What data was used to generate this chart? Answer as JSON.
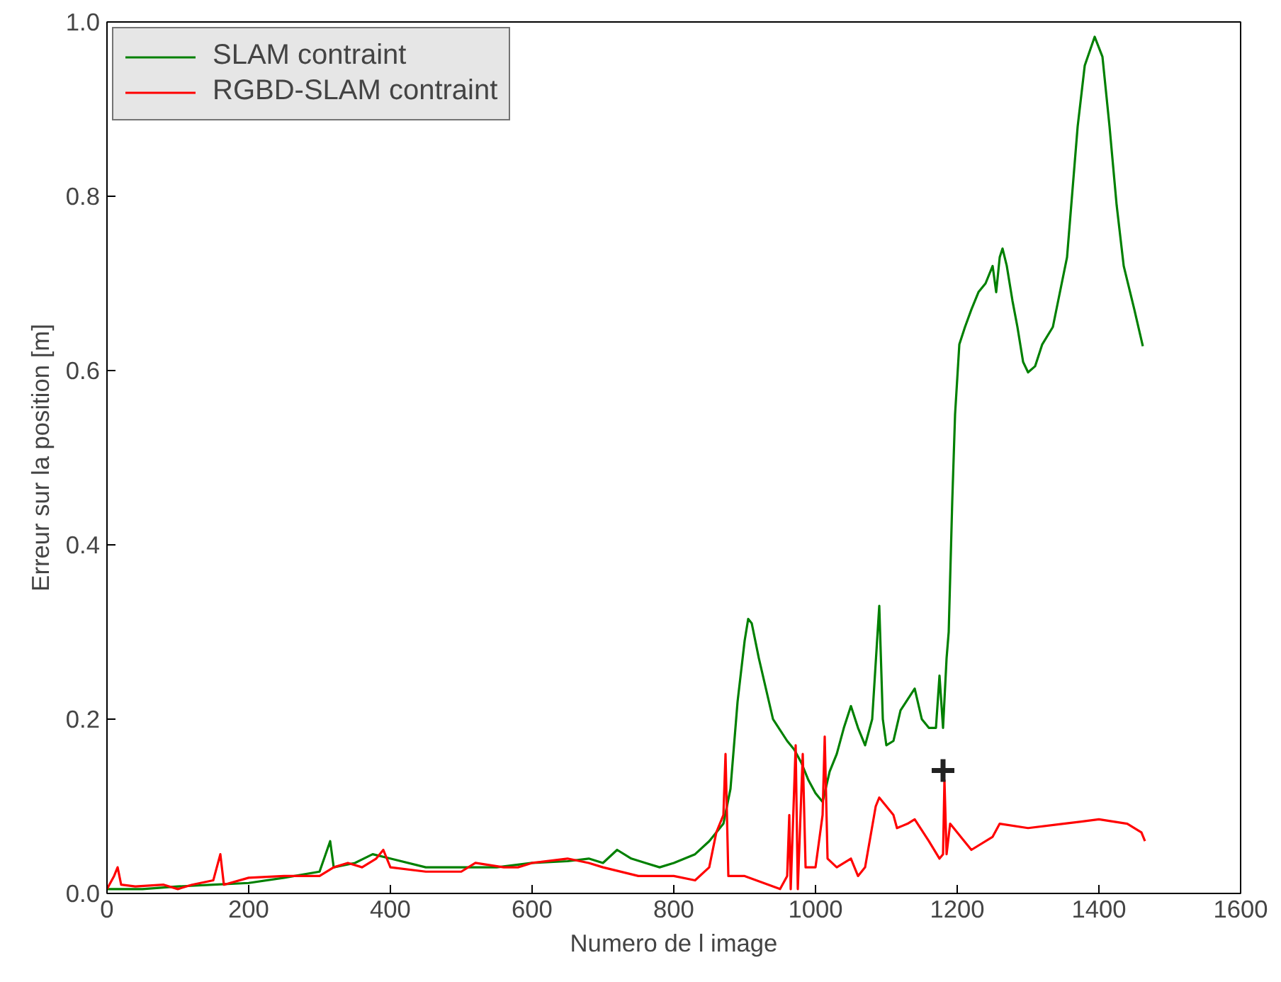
{
  "chart_data": {
    "type": "line",
    "xlabel": "Numero de l image",
    "ylabel": "Erreur sur la position [m]",
    "xlim": [
      0,
      1600
    ],
    "ylim": [
      0,
      1.0
    ],
    "xticks": [
      0,
      200,
      400,
      600,
      800,
      1000,
      1200,
      1400,
      1600
    ],
    "yticks": [
      {
        "value": 0,
        "label": "0.0"
      },
      {
        "value": 0.2,
        "label": "0.2"
      },
      {
        "value": 0.4,
        "label": "0.4"
      },
      {
        "value": 0.6,
        "label": "0.6"
      },
      {
        "value": 0.8,
        "label": "0.8"
      },
      {
        "value": 1.0,
        "label": "1.0"
      }
    ],
    "grid": false,
    "legend": "top left",
    "line_style": "solid",
    "series": [
      {
        "name": "SLAM contraint",
        "color": "#008000",
        "x": [
          0,
          50,
          100,
          150,
          200,
          250,
          300,
          315,
          320,
          350,
          375,
          400,
          450,
          500,
          550,
          600,
          650,
          680,
          700,
          720,
          740,
          760,
          780,
          800,
          830,
          850,
          870,
          880,
          890,
          900,
          905,
          910,
          920,
          940,
          960,
          970,
          980,
          990,
          1000,
          1010,
          1020,
          1030,
          1040,
          1050,
          1060,
          1070,
          1080,
          1090,
          1095,
          1100,
          1110,
          1120,
          1140,
          1150,
          1160,
          1170,
          1175,
          1180,
          1185,
          1188,
          1193,
          1197,
          1203,
          1211,
          1220,
          1230,
          1240,
          1250,
          1255,
          1260,
          1264,
          1270,
          1278,
          1285,
          1293,
          1300,
          1310,
          1320,
          1335,
          1345,
          1355,
          1362,
          1370,
          1380,
          1394,
          1405,
          1415,
          1425,
          1435,
          1450,
          1462
        ],
        "values": [
          0.005,
          0.005,
          0.008,
          0.01,
          0.012,
          0.018,
          0.025,
          0.06,
          0.03,
          0.035,
          0.045,
          0.04,
          0.03,
          0.03,
          0.03,
          0.035,
          0.037,
          0.04,
          0.035,
          0.05,
          0.04,
          0.035,
          0.03,
          0.035,
          0.045,
          0.06,
          0.08,
          0.12,
          0.22,
          0.29,
          0.315,
          0.31,
          0.27,
          0.2,
          0.175,
          0.165,
          0.15,
          0.13,
          0.115,
          0.105,
          0.14,
          0.16,
          0.19,
          0.215,
          0.19,
          0.17,
          0.2,
          0.33,
          0.2,
          0.17,
          0.175,
          0.21,
          0.235,
          0.2,
          0.19,
          0.19,
          0.25,
          0.19,
          0.27,
          0.3,
          0.45,
          0.55,
          0.63,
          0.65,
          0.67,
          0.69,
          0.7,
          0.72,
          0.69,
          0.73,
          0.74,
          0.72,
          0.68,
          0.65,
          0.61,
          0.598,
          0.605,
          0.63,
          0.65,
          0.69,
          0.73,
          0.8,
          0.88,
          0.95,
          0.983,
          0.96,
          0.88,
          0.79,
          0.72,
          0.67,
          0.628
        ]
      },
      {
        "name": "RGBD-SLAM contraint",
        "color": "#ff0000",
        "x": [
          0,
          10,
          15,
          20,
          40,
          80,
          100,
          120,
          150,
          155,
          160,
          165,
          200,
          250,
          300,
          320,
          340,
          360,
          380,
          390,
          400,
          450,
          500,
          520,
          560,
          580,
          600,
          650,
          680,
          700,
          750,
          800,
          830,
          850,
          860,
          870,
          873,
          877,
          900,
          950,
          960,
          963,
          965,
          972,
          975,
          982,
          986,
          1000,
          1010,
          1013,
          1017,
          1030,
          1050,
          1060,
          1070,
          1085,
          1090,
          1100,
          1110,
          1115,
          1130,
          1140,
          1160,
          1175,
          1180,
          1182,
          1185,
          1190,
          1210,
          1220,
          1250,
          1260,
          1300,
          1350,
          1400,
          1440,
          1460,
          1465
        ],
        "values": [
          0.005,
          0.02,
          0.03,
          0.01,
          0.008,
          0.01,
          0.005,
          0.01,
          0.015,
          0.03,
          0.045,
          0.01,
          0.018,
          0.02,
          0.02,
          0.03,
          0.035,
          0.03,
          0.04,
          0.05,
          0.03,
          0.025,
          0.025,
          0.035,
          0.03,
          0.03,
          0.035,
          0.04,
          0.035,
          0.03,
          0.02,
          0.02,
          0.015,
          0.03,
          0.07,
          0.09,
          0.16,
          0.02,
          0.02,
          0.005,
          0.02,
          0.09,
          0.005,
          0.17,
          0.005,
          0.16,
          0.03,
          0.03,
          0.09,
          0.18,
          0.04,
          0.03,
          0.04,
          0.02,
          0.03,
          0.1,
          0.11,
          0.1,
          0.09,
          0.075,
          0.08,
          0.085,
          0.06,
          0.04,
          0.045,
          0.13,
          0.045,
          0.08,
          0.06,
          0.05,
          0.065,
          0.08,
          0.075,
          0.08,
          0.085,
          0.08,
          0.07,
          0.06
        ]
      },
      {
        "type": "scatter",
        "marker": "cross",
        "color": "#222222",
        "x": [
          1180
        ],
        "values": [
          0.141
        ]
      }
    ]
  }
}
